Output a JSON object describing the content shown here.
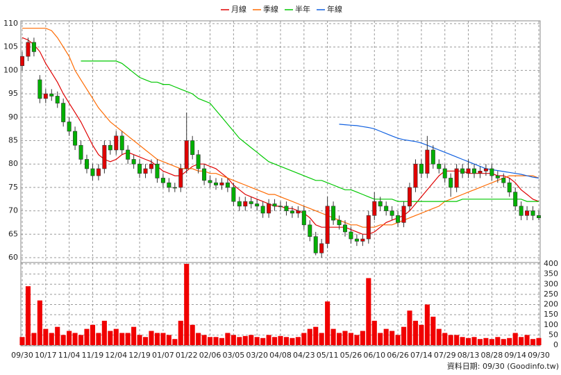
{
  "chart_data": [
    {
      "type": "candlestick",
      "categories": [
        "09/30",
        null,
        null,
        null,
        "10/17",
        null,
        null,
        null,
        "11/04",
        null,
        null,
        null,
        "11/19",
        null,
        null,
        null,
        "12/04",
        null,
        null,
        null,
        "12/19",
        null,
        null,
        null,
        "01/07",
        null,
        null,
        null,
        "01/22",
        null,
        null,
        null,
        "02/06",
        null,
        null,
        null,
        "03/05",
        null,
        null,
        null,
        "03/20",
        null,
        null,
        null,
        "04/08",
        null,
        null,
        null,
        "04/23",
        null,
        null,
        null,
        "05/11",
        null,
        null,
        null,
        "05/26",
        null,
        null,
        null,
        "06/10",
        null,
        null,
        null,
        "06/26",
        null,
        null,
        null,
        "07/14",
        null,
        null,
        null,
        "07/29",
        null,
        null,
        null,
        "08/13",
        null,
        null,
        null,
        "08/28",
        null,
        null,
        null,
        "09/14",
        null,
        null,
        null,
        "09/30"
      ],
      "open": [
        101,
        103,
        106,
        98,
        94,
        95,
        94.5,
        93,
        89,
        87,
        84,
        81,
        79,
        77.5,
        79,
        84,
        83,
        86,
        83,
        81,
        80,
        78,
        79,
        80,
        77,
        76,
        75,
        75,
        79,
        85,
        82,
        79,
        76.5,
        76,
        75.5,
        76,
        75,
        72,
        71,
        72,
        71.5,
        71,
        69.5,
        71.5,
        71,
        71,
        70,
        69.5,
        70,
        67,
        64.5,
        61,
        63,
        71,
        68,
        67,
        65.5,
        64,
        63.5,
        64,
        69,
        72,
        71,
        70,
        69,
        67.5,
        71,
        75,
        80,
        78,
        83,
        80,
        79,
        77,
        75,
        79,
        78,
        79,
        78,
        78.5,
        79,
        77.5,
        77,
        76,
        74,
        71,
        69,
        70,
        69
      ],
      "high": [
        104,
        107,
        107,
        99,
        96,
        96,
        95.5,
        94,
        90,
        88,
        85,
        82,
        80,
        80,
        85,
        85,
        87,
        87,
        84,
        82,
        81,
        80,
        81,
        81,
        78,
        77,
        76,
        80,
        91,
        86,
        83,
        80,
        77.5,
        77,
        77,
        77,
        76,
        73,
        73,
        73,
        72.5,
        72,
        72.5,
        72.5,
        72,
        72,
        71,
        71,
        71,
        68,
        65.5,
        64,
        73,
        72,
        69,
        68,
        66.5,
        65,
        65,
        70,
        74,
        73,
        72,
        71,
        70,
        72,
        76,
        81,
        81,
        86,
        84,
        81,
        80,
        78,
        80,
        80,
        81,
        80,
        79.5,
        80,
        80,
        78.5,
        78,
        77,
        75,
        72,
        71,
        71,
        70
      ],
      "low": [
        100,
        102,
        103,
        93,
        93,
        93.5,
        92,
        88,
        86,
        83,
        80,
        78,
        76.5,
        76.5,
        78,
        82,
        82,
        82,
        80,
        79,
        77,
        77,
        78,
        76,
        75,
        74,
        74,
        74,
        78,
        81,
        78,
        75.5,
        75,
        74.5,
        74.5,
        74,
        71,
        70,
        70,
        70.5,
        70,
        68.5,
        68.5,
        70,
        70,
        69,
        68.5,
        68.5,
        66,
        63.5,
        60.5,
        60,
        62,
        67,
        66,
        64.5,
        63,
        62.5,
        62.5,
        63,
        68,
        70,
        69,
        68,
        66.5,
        66.5,
        70,
        74,
        77,
        77,
        79,
        78,
        76,
        73,
        74,
        77,
        77,
        77,
        77,
        77.5,
        76.5,
        76,
        75,
        73,
        70,
        68,
        68,
        68,
        68
      ],
      "close": [
        103,
        106,
        104,
        94,
        95,
        94.5,
        93,
        89,
        87,
        84,
        81,
        79,
        77.5,
        79,
        84,
        83,
        86,
        83,
        81,
        80,
        78,
        79,
        80,
        77,
        76,
        75,
        75,
        79,
        85,
        82,
        79,
        76.5,
        76,
        75.5,
        76,
        75,
        72,
        71,
        72,
        71.5,
        71,
        69.5,
        71.5,
        71,
        71,
        70,
        69.5,
        70,
        67,
        64.5,
        61,
        63,
        71,
        68,
        67,
        65.5,
        64,
        63.5,
        64,
        69,
        72,
        71,
        70,
        69,
        67.5,
        71,
        75,
        80,
        78,
        83,
        80,
        79,
        77,
        75,
        79,
        78,
        79,
        78,
        78.5,
        79,
        77.5,
        77,
        76,
        74,
        71,
        69,
        70,
        69,
        68.5
      ],
      "up_color": "#e00000",
      "down_color": "#00b000",
      "series": [
        {
          "name": "月線",
          "color": "#e00000",
          "values": [
            107,
            106.5,
            105.5,
            104,
            101.5,
            99.5,
            97.5,
            95,
            93,
            91,
            89,
            86.5,
            84,
            82,
            81,
            80.5,
            81,
            82,
            82.5,
            82,
            81.5,
            81,
            80.5,
            79.5,
            78.5,
            78,
            77.5,
            77.5,
            78.5,
            79.5,
            80,
            80,
            79.5,
            79,
            78,
            77,
            75.5,
            74.5,
            73.5,
            73,
            72.5,
            72,
            71.5,
            71,
            71,
            70.5,
            70.5,
            70,
            69.5,
            68.5,
            67,
            66.5,
            66.5,
            66.5,
            66.5,
            66.5,
            66,
            65.5,
            65,
            65,
            65.5,
            66.5,
            67.5,
            68,
            68.5,
            69,
            70,
            71.5,
            73,
            74.5,
            76,
            77.5,
            78.5,
            78.5,
            78.5,
            78.5,
            78,
            78,
            78,
            78,
            78,
            77.5,
            77.5,
            77,
            76,
            74.5,
            73.5,
            72.5,
            72
          ]
        },
        {
          "name": "季線",
          "color": "#ff6a00",
          "values": [
            109,
            109,
            109,
            109,
            109,
            108.5,
            107,
            105,
            103,
            100,
            98,
            96,
            94,
            92,
            90.5,
            89,
            88,
            87,
            86,
            85,
            84,
            83,
            82,
            81,
            80.5,
            80,
            79.5,
            79,
            79,
            79,
            78.5,
            78.5,
            78,
            78,
            77.5,
            77,
            76.5,
            76,
            75.5,
            75,
            74.5,
            74,
            73.5,
            73.5,
            73,
            72.5,
            72,
            71.5,
            71,
            70.5,
            70,
            69.5,
            69,
            68.5,
            68,
            67.5,
            67,
            67,
            66.5,
            66.5,
            66.5,
            67,
            67,
            67,
            67.5,
            68,
            68.5,
            69,
            69.5,
            70,
            70.5,
            71,
            72,
            72.5,
            73,
            73.5,
            74,
            74.5,
            75,
            75.5,
            76,
            76.5,
            77,
            77.5,
            77.5,
            77.5,
            77.5,
            77.5,
            77
          ]
        },
        {
          "name": "半年",
          "color": "#00c800",
          "values": [
            null,
            null,
            null,
            null,
            null,
            null,
            null,
            null,
            null,
            null,
            102,
            102,
            102,
            102,
            102,
            102,
            102,
            101.5,
            100.5,
            99.5,
            98.5,
            98,
            97.5,
            97.5,
            97,
            97,
            96.5,
            96,
            95.5,
            95,
            94,
            93.5,
            93,
            91.5,
            90,
            88.5,
            87,
            85.5,
            84.5,
            83.5,
            82.5,
            81.5,
            80.5,
            80,
            79.5,
            79,
            78.5,
            78,
            77.5,
            77,
            76.5,
            76.5,
            76,
            75.5,
            75,
            74.5,
            74.5,
            74,
            73.5,
            73,
            72.5,
            72.5,
            72.5,
            72.5,
            72,
            72,
            72,
            72,
            72,
            72,
            72,
            72,
            72,
            72,
            72,
            72.5,
            72.5,
            72.5,
            72.5,
            72.5,
            72.5,
            72.5,
            72.5,
            72.5,
            72.5,
            72.5,
            72,
            72,
            72
          ]
        },
        {
          "name": "年線",
          "color": "#1060e0",
          "values": [
            null,
            null,
            null,
            null,
            null,
            null,
            null,
            null,
            null,
            null,
            null,
            null,
            null,
            null,
            null,
            null,
            null,
            null,
            null,
            null,
            null,
            null,
            null,
            null,
            null,
            null,
            null,
            null,
            null,
            null,
            null,
            null,
            null,
            null,
            null,
            null,
            null,
            null,
            null,
            null,
            null,
            null,
            null,
            null,
            null,
            null,
            null,
            null,
            null,
            null,
            null,
            null,
            null,
            null,
            88.5,
            88.4,
            88.3,
            88.2,
            88,
            87.8,
            87.5,
            87,
            86.5,
            86,
            85.5,
            85.2,
            85,
            84.8,
            84.5,
            84,
            83.5,
            83,
            82.5,
            82,
            81.5,
            81,
            80.5,
            80,
            79.5,
            79,
            78.8,
            78.6,
            78.4,
            78.2,
            78,
            77.8,
            77.5,
            77.2,
            77
          ]
        }
      ],
      "ylim": [
        60,
        110
      ],
      "yticks": [
        60,
        65,
        70,
        75,
        80,
        85,
        90,
        95,
        100,
        105,
        110
      ],
      "grid": true
    },
    {
      "type": "bar",
      "color": "#f00000",
      "values": [
        40,
        290,
        60,
        220,
        80,
        60,
        90,
        50,
        70,
        60,
        50,
        80,
        100,
        60,
        120,
        70,
        80,
        60,
        60,
        90,
        50,
        40,
        70,
        60,
        60,
        50,
        30,
        120,
        400,
        100,
        60,
        50,
        40,
        40,
        35,
        60,
        50,
        40,
        45,
        50,
        40,
        35,
        50,
        40,
        45,
        40,
        35,
        40,
        60,
        80,
        90,
        60,
        215,
        80,
        60,
        70,
        60,
        50,
        70,
        330,
        120,
        60,
        80,
        70,
        50,
        90,
        170,
        120,
        100,
        200,
        140,
        80,
        60,
        50,
        50,
        40,
        35,
        40,
        30,
        35,
        30,
        40,
        30,
        35,
        60,
        40,
        50,
        30,
        35
      ],
      "ylim": [
        0,
        400
      ],
      "yticks": [
        0,
        50,
        100,
        150,
        200,
        250,
        300,
        350,
        400
      ],
      "grid": true
    }
  ],
  "footnote": "資料日期: 09/30 (Goodinfo.tw)"
}
